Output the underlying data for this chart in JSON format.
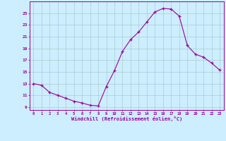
{
  "x": [
    0,
    1,
    2,
    3,
    4,
    5,
    6,
    7,
    8,
    9,
    10,
    11,
    12,
    13,
    14,
    15,
    16,
    17,
    18,
    19,
    20,
    21,
    22,
    23
  ],
  "y": [
    13,
    12.7,
    11.5,
    11,
    10.5,
    10,
    9.7,
    9.3,
    9.2,
    12.5,
    15.2,
    18.5,
    20.5,
    21.8,
    23.5,
    25.2,
    25.8,
    25.7,
    24.5,
    19.5,
    18.0,
    17.5,
    16.5,
    15.3
  ],
  "line_color": "#990099",
  "marker_color": "#990099",
  "bg_color": "#cceeff",
  "grid_color": "#aacccc",
  "xlabel": "Windchill (Refroidissement éolien,°C)",
  "yticks": [
    9,
    11,
    13,
    15,
    17,
    19,
    21,
    23,
    25
  ],
  "xticks": [
    0,
    1,
    2,
    3,
    4,
    5,
    6,
    7,
    8,
    9,
    10,
    11,
    12,
    13,
    14,
    15,
    16,
    17,
    18,
    19,
    20,
    21,
    22,
    23
  ],
  "ylim": [
    8.5,
    27.0
  ],
  "xlim": [
    -0.5,
    23.5
  ],
  "label_color": "#990099",
  "tick_color": "#990099",
  "axis_color": "#990099"
}
